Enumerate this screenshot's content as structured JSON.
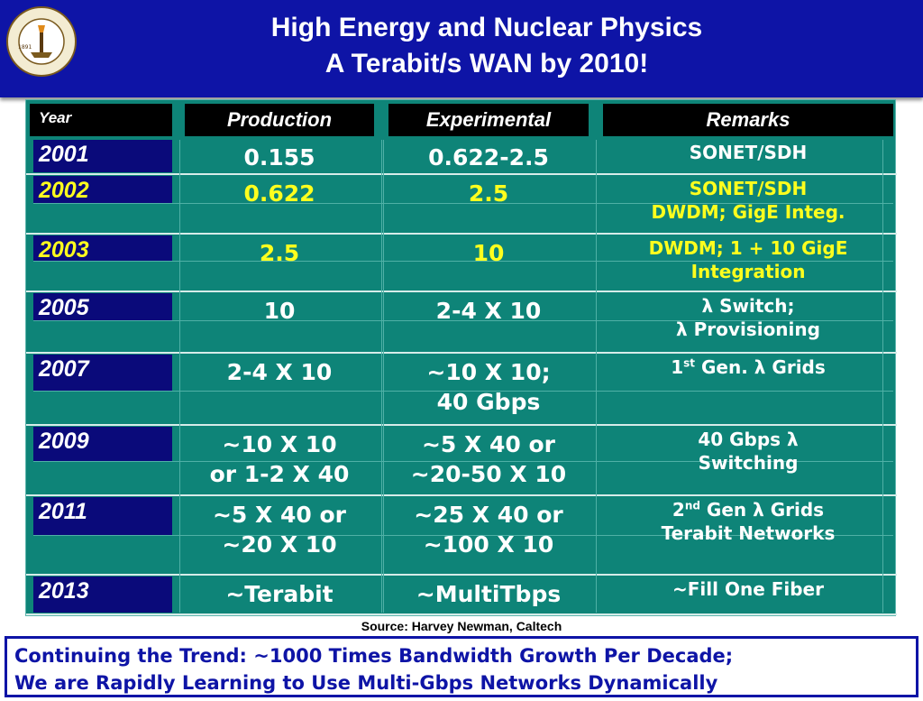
{
  "header": {
    "title_line1": "High Energy and Nuclear Physics",
    "title_line2": "A Terabit/s WAN by 2010!",
    "logo_text": "CALIFORNIA INSTITUTE OF TECHNOLOGY",
    "logo_year": "1891"
  },
  "table": {
    "headers": {
      "year": "Year",
      "production": "Production",
      "experimental": "Experimental",
      "remarks": "Remarks"
    },
    "rows": [
      {
        "year": "2001",
        "prod1": "0.155",
        "prod2": "",
        "exp1": "0.622-2.5",
        "exp2": "",
        "rem1": "SONET/SDH",
        "rem2": "",
        "color": "white"
      },
      {
        "year": "2002",
        "prod1": "0.622",
        "prod2": "",
        "exp1": "2.5",
        "exp2": "",
        "rem1": "SONET/SDH",
        "rem2": "DWDM; GigE Integ.",
        "color": "yellow"
      },
      {
        "year": "2003",
        "prod1": "2.5",
        "prod2": "",
        "exp1": "10",
        "exp2": "",
        "rem1": "DWDM; 1 + 10 GigE",
        "rem2": "Integration",
        "color": "yellow"
      },
      {
        "year": "2005",
        "prod1": "10",
        "prod2": "",
        "exp1": "2-4 X 10",
        "exp2": "",
        "rem1": "λ Switch;",
        "rem2": "λ Provisioning",
        "color": "white"
      },
      {
        "year": "2007",
        "prod1": "2-4 X 10",
        "prod2": "",
        "exp1": "~10 X 10;",
        "exp2": "40 Gbps",
        "rem1_pre": "1",
        "rem1_sup": "st",
        "rem1_post": " Gen. λ Grids",
        "rem2": "",
        "color": "white"
      },
      {
        "year": "2009",
        "prod1": "~10 X 10",
        "prod2": "or  1-2 X 40",
        "exp1": "~5 X 40 or",
        "exp2": "~20-50 X 10",
        "rem1": "40 Gbps λ",
        "rem2": "Switching",
        "color": "white"
      },
      {
        "year": "2011",
        "prod1": "~5 X 40 or",
        "prod2": "~20 X 10",
        "exp1": "~25 X 40 or",
        "exp2": "~100 X 10",
        "rem1_pre": "2",
        "rem1_sup": "nd",
        "rem1_post": " Gen λ Grids",
        "rem2": "Terabit Networks",
        "color": "white"
      },
      {
        "year": "2013",
        "prod1": "~Terabit",
        "prod2": "",
        "exp1": "~MultiTbps",
        "exp2": "",
        "rem1": "~Fill One Fiber",
        "rem2": "",
        "color": "white"
      }
    ]
  },
  "source": "Source: Harvey Newman, Caltech",
  "footer": {
    "line1": "Continuing the Trend: ~1000 Times Bandwidth Growth Per Decade;",
    "line2": "We are Rapidly Learning to Use Multi-Gbps Networks Dynamically"
  },
  "colors": {
    "header_bg": "#0e14a6",
    "table_bg": "#0e8478",
    "year_bg": "#0a0a7a",
    "highlight": "#ffff1e"
  }
}
